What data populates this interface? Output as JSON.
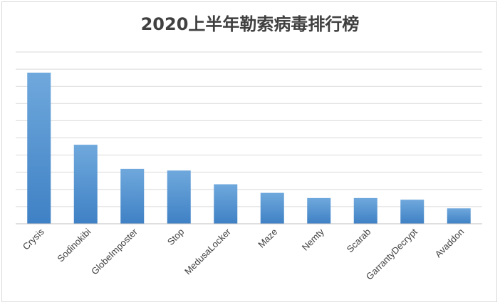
{
  "chart_data": {
    "type": "bar",
    "title": "2020上半年勒索病毒排行榜",
    "categories": [
      "Crysis",
      "Sodinokibi",
      "GlobeImposter",
      "Stop",
      "MedusaLocker",
      "Maze",
      "Nemty",
      "Scarab",
      "GarrantyDecrypt",
      "Avaddon"
    ],
    "values": [
      8.8,
      4.6,
      3.2,
      3.1,
      2.3,
      1.8,
      1.5,
      1.5,
      1.4,
      0.9
    ],
    "ylim": [
      0,
      10
    ],
    "grid": true,
    "yticks_visible": false,
    "legend": "none",
    "colors": {
      "bar_top": "#6fa8dc",
      "bar_bottom": "#3f81c5",
      "grid": "#d9d9d9",
      "axis": "#bfbfbf"
    }
  }
}
